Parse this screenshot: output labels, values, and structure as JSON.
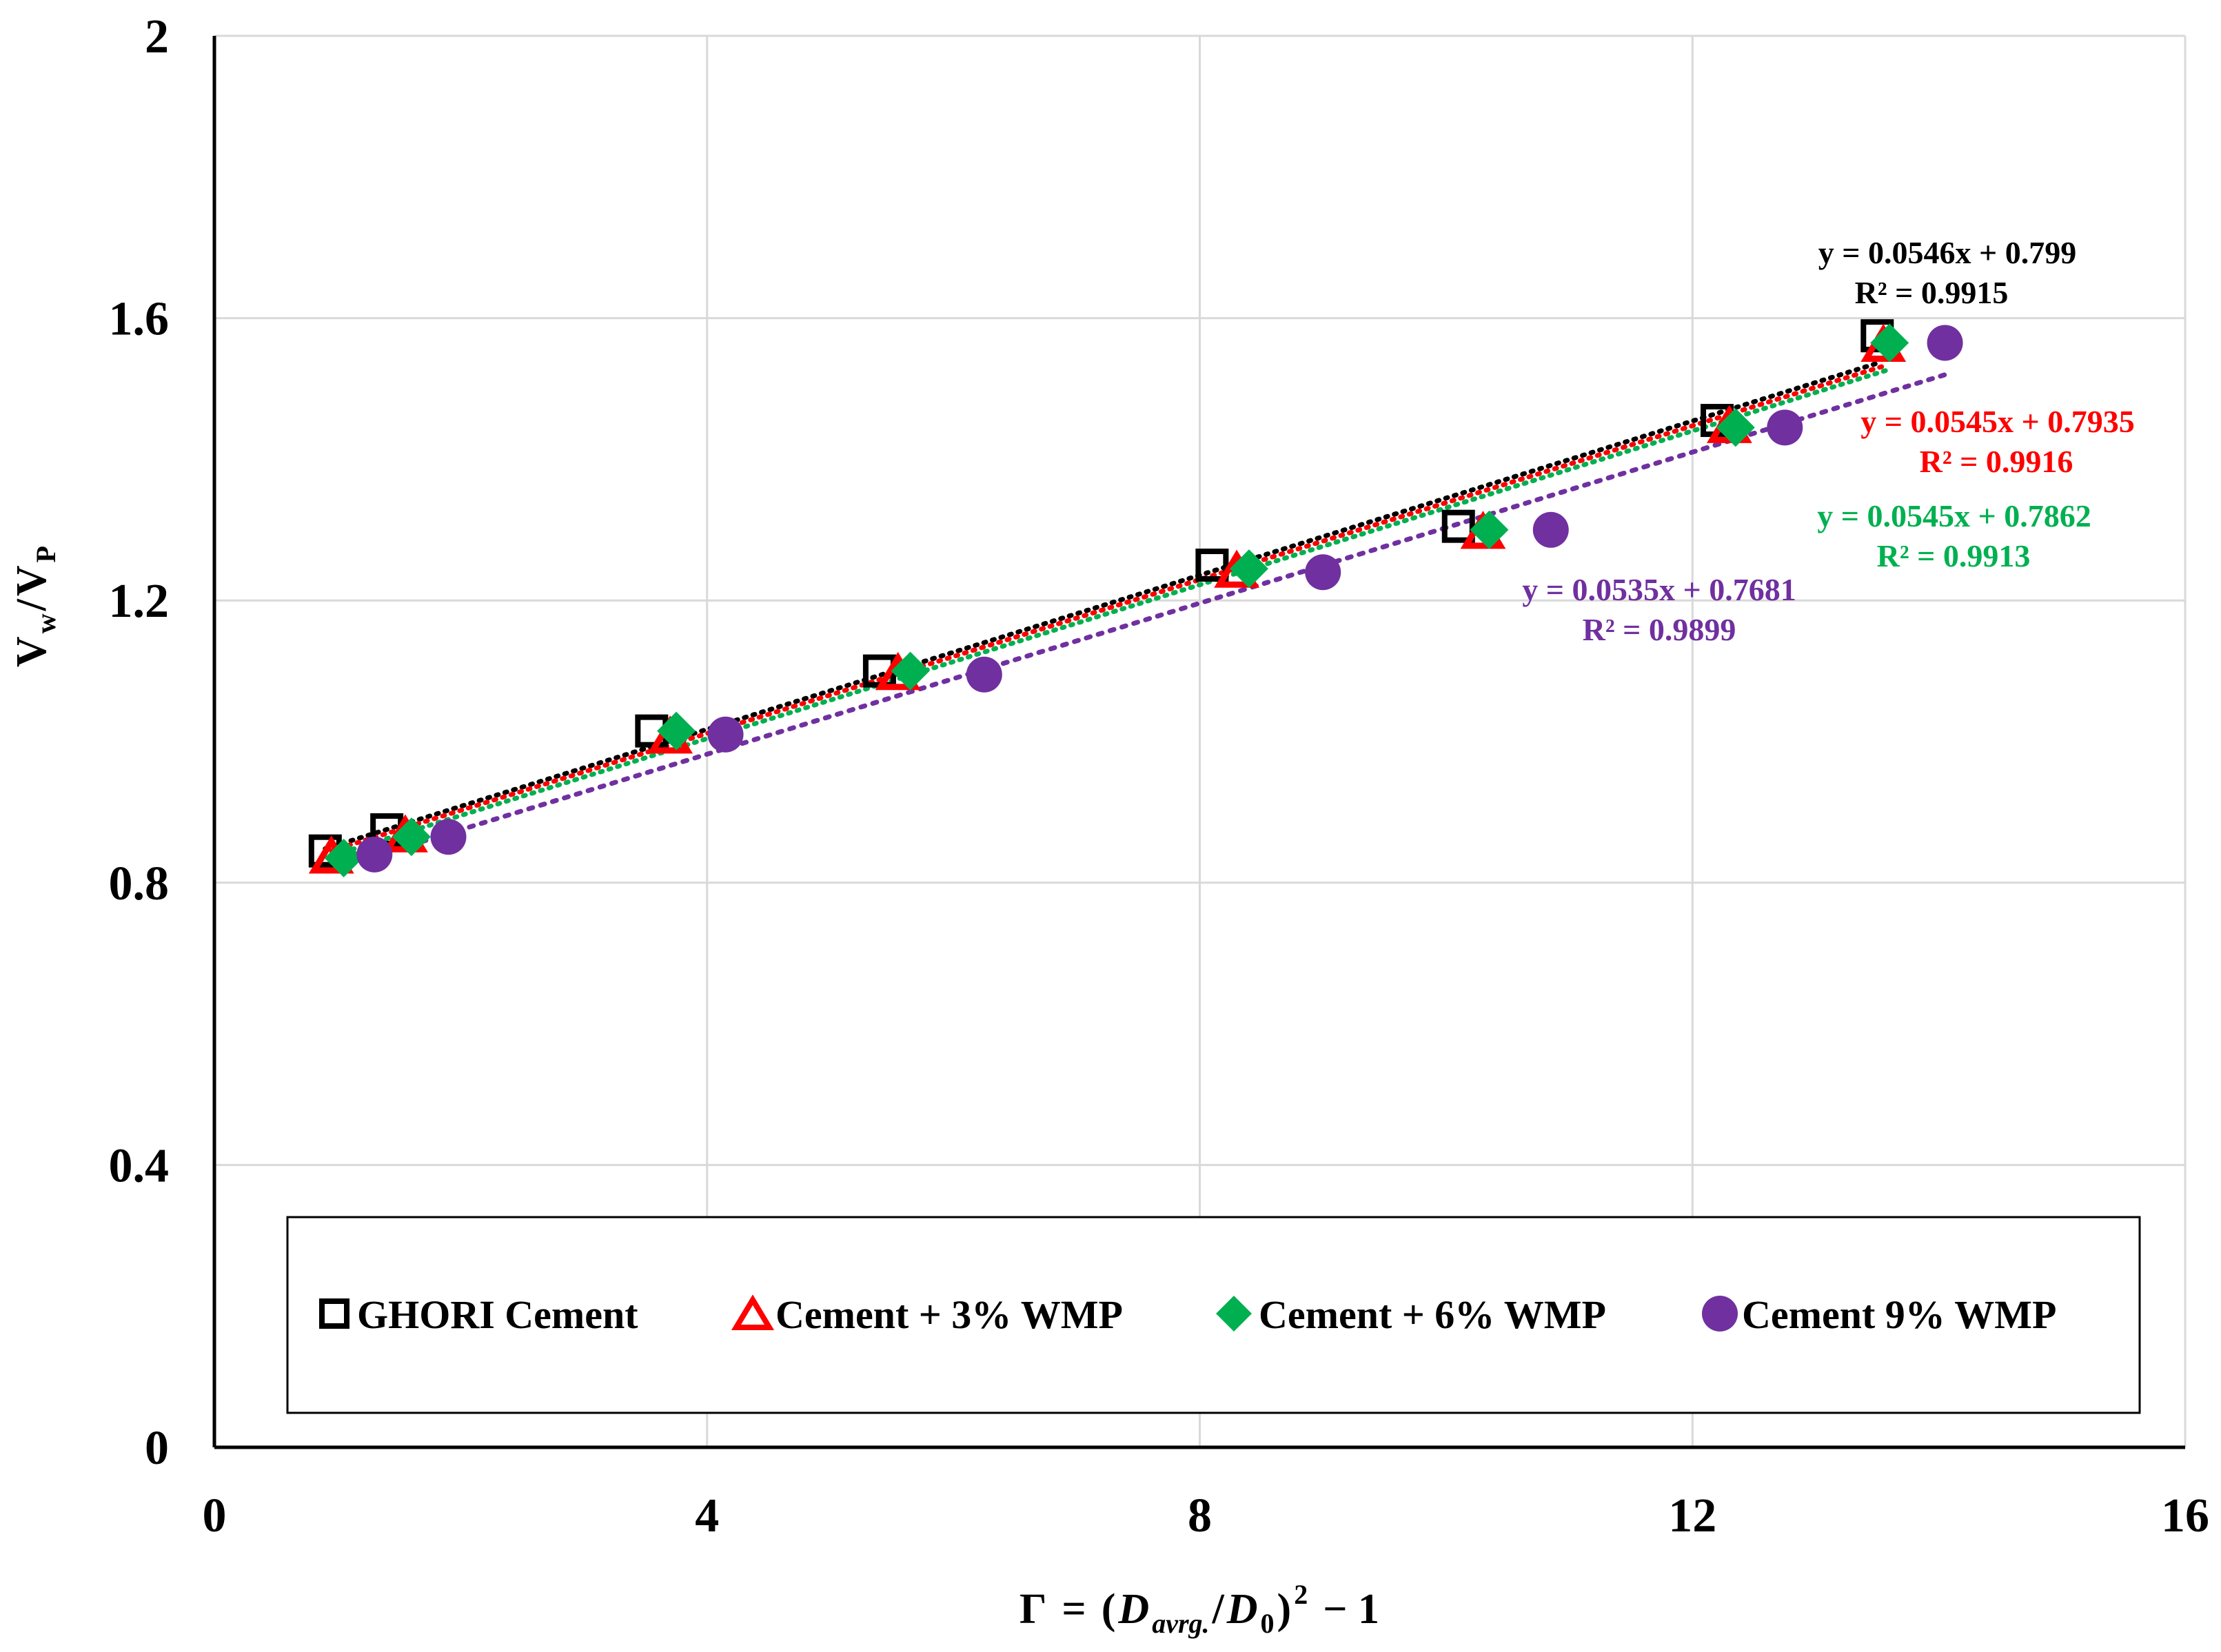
{
  "chart_data": {
    "type": "scatter",
    "title": "",
    "xlabel": "Γ = (D_avrg./D_0)^2 − 1",
    "xlabel_parts": {
      "gamma": "Γ",
      "equals": "=",
      "open": "(",
      "D": "D",
      "sub_avrg": "avrg.",
      "slash": "/",
      "sub_0": "0",
      "close": ")",
      "power": "2",
      "minus_one": "− 1"
    },
    "ylabel": "Vw/VP",
    "ylabel_parts": {
      "V1": "V",
      "sub_w": "w",
      "slash": "/",
      "V2": "V",
      "sub_P": "P"
    },
    "xlim": [
      0,
      16
    ],
    "ylim": [
      0,
      2
    ],
    "x_ticks": [
      "0",
      "4",
      "8",
      "12",
      "16"
    ],
    "y_ticks": [
      "0",
      "0.4",
      "0.8",
      "1.2",
      "1.6",
      "2"
    ],
    "grid": true,
    "legend_position": "bottom-inside",
    "series": [
      {
        "name": "GHORI Cement",
        "marker": "square-open",
        "color": "#000000",
        "trend_color": "#000000",
        "x": [
          0.9,
          1.4,
          3.55,
          5.4,
          8.1,
          10.1,
          12.2,
          13.5
        ],
        "y": [
          0.845,
          0.875,
          1.015,
          1.1,
          1.25,
          1.305,
          1.455,
          1.575
        ],
        "equation": "y = 0.0546x + 0.799",
        "r2": "R² = 0.9915",
        "slope": 0.0546,
        "intercept": 0.799
      },
      {
        "name": "Cement + 3% WMP",
        "marker": "triangle-open",
        "color": "#ff0000",
        "trend_color": "#ff0000",
        "x": [
          0.95,
          1.55,
          3.7,
          5.55,
          8.3,
          10.3,
          12.3,
          13.55
        ],
        "y": [
          0.835,
          0.865,
          1.005,
          1.095,
          1.24,
          1.295,
          1.445,
          1.56
        ],
        "equation": "y = 0.0545x + 0.7935",
        "r2": "R² = 0.9916",
        "slope": 0.0545,
        "intercept": 0.7935
      },
      {
        "name": "Cement + 6% WMP",
        "marker": "diamond",
        "color": "#00b050",
        "trend_color": "#00b050",
        "x": [
          1.05,
          1.6,
          3.75,
          5.65,
          8.4,
          10.35,
          12.35,
          13.6
        ],
        "y": [
          0.835,
          0.865,
          1.015,
          1.1,
          1.245,
          1.3,
          1.445,
          1.565
        ],
        "equation": "y = 0.0545x + 0.7862",
        "r2": "R² = 0.9913",
        "slope": 0.0545,
        "intercept": 0.7862
      },
      {
        "name": "Cement 9% WMP",
        "marker": "circle",
        "color": "#7030a0",
        "trend_color": "#7030a0",
        "x": [
          1.3,
          1.9,
          4.15,
          6.25,
          9.0,
          10.85,
          12.75,
          14.05
        ],
        "y": [
          0.84,
          0.865,
          1.01,
          1.095,
          1.24,
          1.3,
          1.445,
          1.565
        ],
        "equation": "y = 0.0535x + 0.7681",
        "r2": "R² = 0.9899",
        "slope": 0.0535,
        "intercept": 0.7681
      }
    ]
  }
}
